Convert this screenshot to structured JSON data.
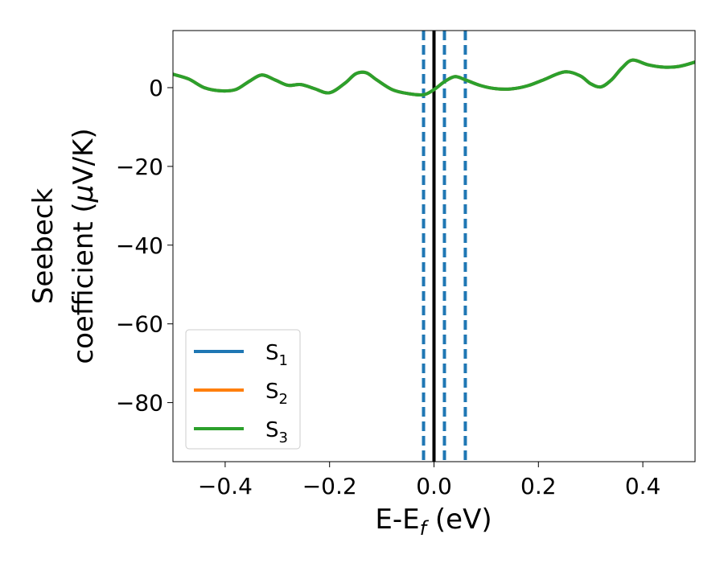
{
  "chart_data": {
    "type": "line",
    "xlabel": {
      "main": "E-E",
      "sub": "f",
      "unit": " (eV)"
    },
    "ylabel": {
      "line1": "Seebeck",
      "line2_pre": "coefficient  (",
      "mu": "μ",
      "line2_post": "V/K)"
    },
    "xlim": [
      -0.5,
      0.5
    ],
    "ylim": [
      -95,
      14.5
    ],
    "xticks": [
      -0.4,
      -0.2,
      0.0,
      0.2,
      0.4
    ],
    "xtick_labels": [
      "−0.4",
      "−0.2",
      "0.0",
      "0.2",
      "0.4"
    ],
    "yticks": [
      0,
      -20,
      -40,
      -60,
      -80
    ],
    "ytick_labels": [
      "0",
      "−20",
      "−40",
      "−60",
      "−80"
    ],
    "series": [
      {
        "name": "S",
        "sub": "1",
        "color": "#1f77b4"
      },
      {
        "name": "S",
        "sub": "2",
        "color": "#ff7f0e"
      },
      {
        "name": "S",
        "sub": "3",
        "color": "#2ca02c"
      }
    ],
    "x": [
      -0.5,
      -0.47,
      -0.44,
      -0.41,
      -0.38,
      -0.355,
      -0.33,
      -0.305,
      -0.28,
      -0.255,
      -0.23,
      -0.2,
      -0.17,
      -0.15,
      -0.13,
      -0.11,
      -0.08,
      -0.05,
      -0.02,
      0.0,
      0.02,
      0.04,
      0.06,
      0.09,
      0.12,
      0.15,
      0.18,
      0.21,
      0.25,
      0.28,
      0.3,
      0.32,
      0.34,
      0.36,
      0.38,
      0.41,
      0.44,
      0.47,
      0.5
    ],
    "y": [
      3.4,
      2.2,
      0.0,
      -0.8,
      -0.5,
      1.5,
      3.2,
      2.0,
      0.6,
      0.8,
      -0.2,
      -1.3,
      1.2,
      3.5,
      3.8,
      2.0,
      -0.5,
      -1.5,
      -1.8,
      -0.5,
      1.5,
      2.8,
      2.0,
      0.5,
      -0.3,
      -0.3,
      0.5,
      2.0,
      4.0,
      3.0,
      1.0,
      0.2,
      2.0,
      5.0,
      7.0,
      5.8,
      5.2,
      5.4,
      6.5
    ],
    "vlines": [
      {
        "x": -0.02,
        "style": "dashed",
        "color": "#1f77b4"
      },
      {
        "x": 0.0,
        "style": "solid",
        "color": "#000000"
      },
      {
        "x": 0.02,
        "style": "dashed",
        "color": "#1f77b4"
      },
      {
        "x": 0.06,
        "style": "dashed",
        "color": "#1f77b4"
      }
    ],
    "legend": "lower-left",
    "grid": false
  }
}
